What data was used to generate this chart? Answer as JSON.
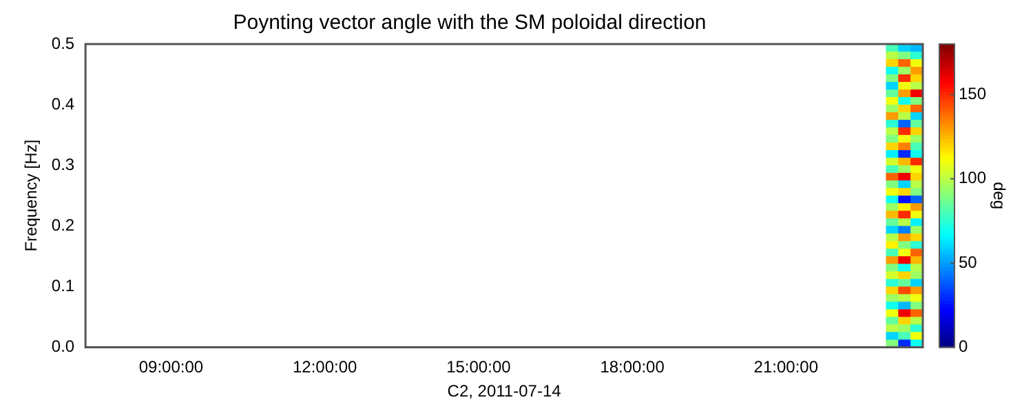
{
  "chart_data": {
    "type": "heatmap",
    "title": "Poynting vector angle with the SM poloidal direction",
    "xlabel": "C2, 2011-07-14",
    "ylabel": "Frequency [Hz]",
    "clabel": "deg",
    "x": [
      23.07,
      23.31,
      23.55
    ],
    "xlim": [
      7.33,
      23.67
    ],
    "xticks": [
      {
        "value": 9,
        "label": "09:00:00"
      },
      {
        "value": 12,
        "label": "12:00:00"
      },
      {
        "value": 15,
        "label": "15:00:00"
      },
      {
        "value": 18,
        "label": "18:00:00"
      },
      {
        "value": 21,
        "label": "21:00:00"
      }
    ],
    "ylim": [
      0,
      0.5
    ],
    "yticks": [
      {
        "value": 0,
        "label": "0.0"
      },
      0.1,
      0.2,
      0.3,
      0.4,
      0.5
    ],
    "clim": [
      0,
      180
    ],
    "cticks": [
      0,
      50,
      100,
      150
    ],
    "grid": false,
    "cells": [
      [
        80,
        60,
        55
      ],
      [
        100,
        90,
        75
      ],
      [
        120,
        140,
        110
      ],
      [
        70,
        95,
        130
      ],
      [
        90,
        150,
        120
      ],
      [
        60,
        110,
        100
      ],
      [
        85,
        130,
        160
      ],
      [
        110,
        70,
        90
      ],
      [
        95,
        120,
        140
      ],
      [
        130,
        100,
        60
      ],
      [
        75,
        40,
        85
      ],
      [
        100,
        150,
        120
      ],
      [
        90,
        110,
        95
      ],
      [
        120,
        135,
        80
      ],
      [
        65,
        30,
        70
      ],
      [
        105,
        125,
        150
      ],
      [
        80,
        95,
        110
      ],
      [
        140,
        160,
        120
      ],
      [
        90,
        60,
        100
      ],
      [
        110,
        120,
        90
      ],
      [
        70,
        25,
        40
      ],
      [
        95,
        115,
        130
      ],
      [
        125,
        150,
        110
      ],
      [
        85,
        100,
        65
      ],
      [
        60,
        45,
        95
      ],
      [
        100,
        130,
        120
      ],
      [
        115,
        90,
        75
      ],
      [
        80,
        110,
        140
      ],
      [
        130,
        160,
        125
      ],
      [
        90,
        70,
        100
      ],
      [
        105,
        120,
        95
      ],
      [
        75,
        85,
        60
      ],
      [
        120,
        145,
        130
      ],
      [
        95,
        100,
        110
      ],
      [
        70,
        55,
        90
      ],
      [
        110,
        160,
        140
      ],
      [
        85,
        120,
        100
      ],
      [
        100,
        95,
        75
      ],
      [
        60,
        80,
        110
      ],
      [
        90,
        30,
        70
      ]
    ]
  }
}
